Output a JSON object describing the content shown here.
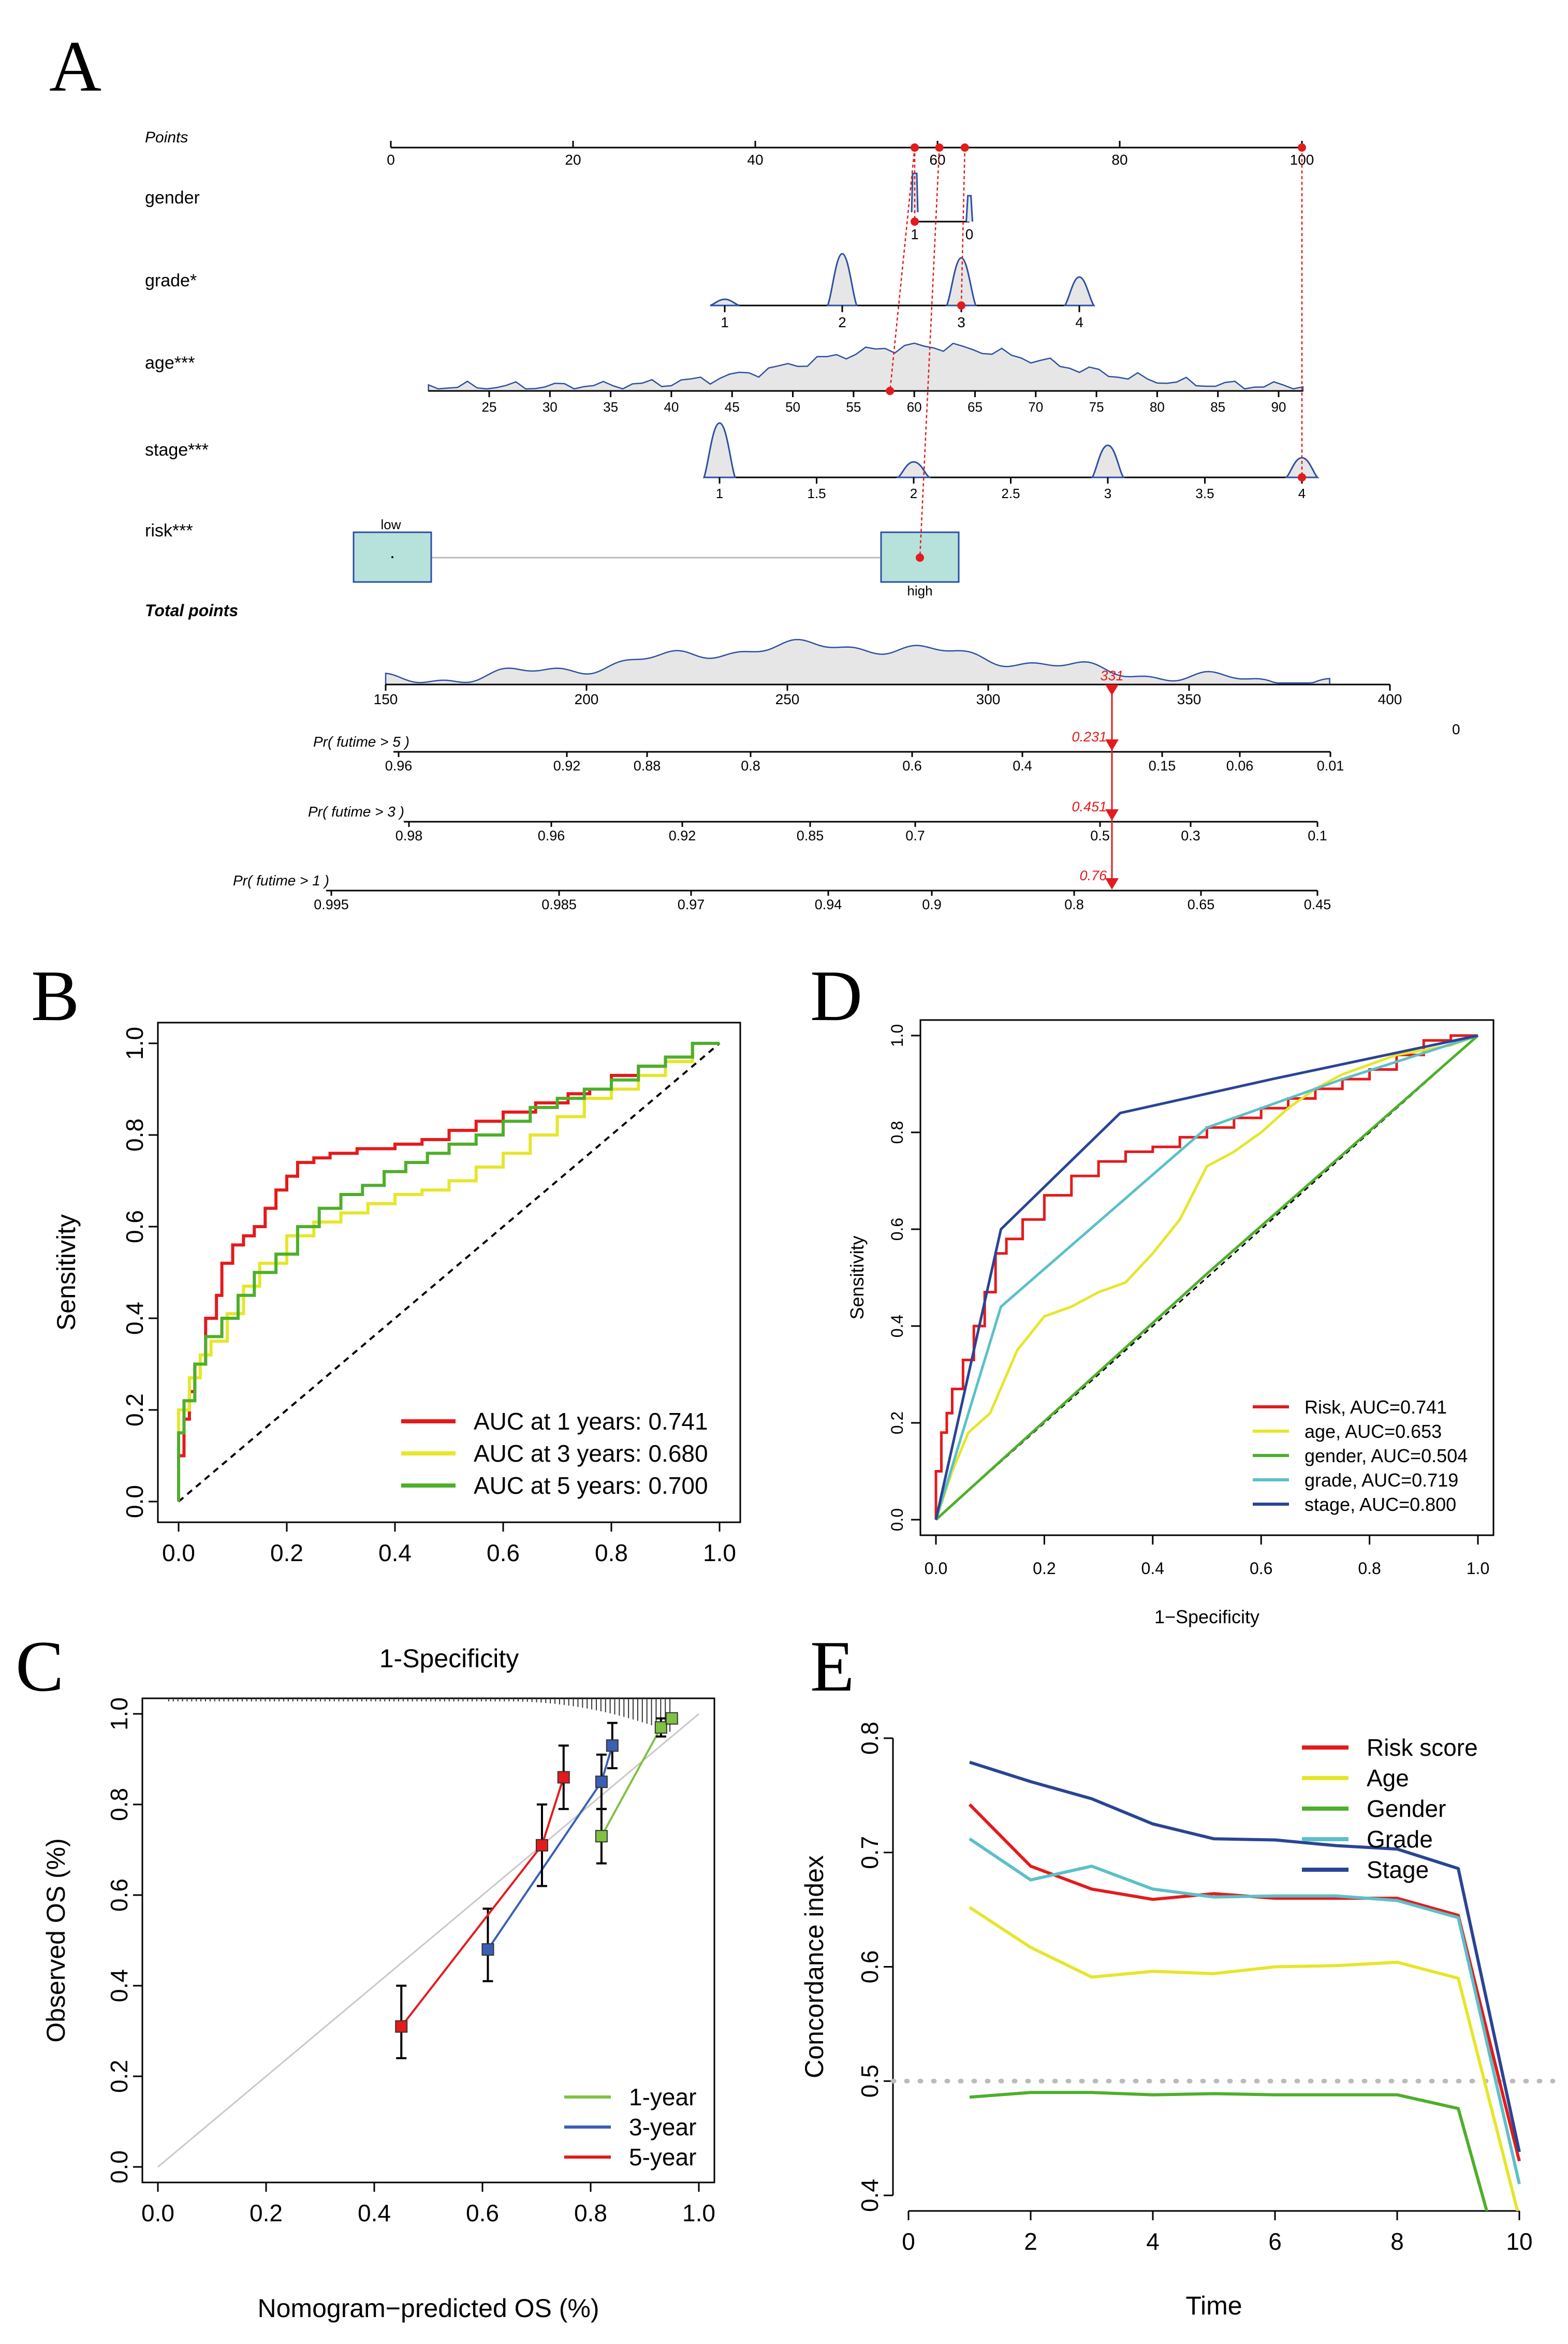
{
  "panels": {
    "A": {
      "letter": "A",
      "nomogram": {
        "points_label": "Points",
        "points_ticks": [
          "0",
          "20",
          "40",
          "60",
          "80",
          "100"
        ],
        "variables": [
          {
            "name": "gender",
            "ticks": [
              "1",
              "0"
            ]
          },
          {
            "name": "grade*",
            "ticks": [
              "1",
              "2",
              "3",
              "4"
            ]
          },
          {
            "name": "age***",
            "ticks": [
              "25",
              "30",
              "35",
              "40",
              "45",
              "50",
              "55",
              "60",
              "65",
              "70",
              "75",
              "80",
              "85",
              "90"
            ]
          },
          {
            "name": "stage***",
            "ticks": [
              "1",
              "1.5",
              "2",
              "2.5",
              "3",
              "3.5",
              "4"
            ]
          },
          {
            "name": "risk***",
            "ticks": [
              "low",
              "high"
            ]
          }
        ],
        "total_points_label": "Total points",
        "total_ticks": [
          "150",
          "200",
          "250",
          "300",
          "350",
          "400"
        ],
        "total_value": "331",
        "extra_zero": "0",
        "probabilities": [
          {
            "label": "Pr( futime > 5 )",
            "ticks": [
              "0.96",
              "0.92",
              "0.88",
              "0.8",
              "0.6",
              "0.4",
              "0.15",
              "0.06",
              "0.01"
            ],
            "value": "0.231"
          },
          {
            "label": "Pr( futime > 3 )",
            "ticks": [
              "0.98",
              "0.96",
              "0.92",
              "0.85",
              "0.7",
              "0.5",
              "0.3",
              "0.1"
            ],
            "value": "0.451"
          },
          {
            "label": "Pr( futime > 1 )",
            "ticks": [
              "0.995",
              "0.985",
              "0.97",
              "0.94",
              "0.9",
              "0.8",
              "0.65",
              "0.45"
            ],
            "value": "0.76"
          }
        ]
      }
    },
    "B": {
      "letter": "B"
    },
    "C": {
      "letter": "C"
    },
    "D": {
      "letter": "D"
    },
    "E": {
      "letter": "E"
    }
  },
  "colors": {
    "red": "#e41a1c",
    "yellow": "#e6e62a",
    "green": "#4daf2a",
    "cyan": "#5bc0c8",
    "navy": "#2a4494",
    "blue": "#3a5fb5",
    "grey": "#c0c0c0",
    "dot_red": "#e41a1c"
  },
  "chart_data": [
    {
      "panel": "B",
      "type": "line",
      "xlabel": "1-Specificity",
      "ylabel": "Sensitivity",
      "xlim": [
        0,
        1
      ],
      "ylim": [
        0,
        1
      ],
      "ticks": [
        0.0,
        0.2,
        0.4,
        0.6,
        0.8,
        1.0
      ],
      "tick_labels": [
        "0.0",
        "0.2",
        "0.4",
        "0.6",
        "0.8",
        "1.0"
      ],
      "legend": [
        {
          "label": "AUC at 1 years: 0.741",
          "color": "#e41a1c"
        },
        {
          "label": "AUC at 3 years: 0.680",
          "color": "#e6e62a"
        },
        {
          "label": "AUC at 5 years: 0.700",
          "color": "#4daf2a"
        }
      ],
      "series": [
        {
          "name": "AUC at 1 years: 0.741",
          "color": "#e41a1c",
          "x": [
            0,
            0.01,
            0.02,
            0.03,
            0.05,
            0.07,
            0.08,
            0.1,
            0.12,
            0.14,
            0.16,
            0.18,
            0.2,
            0.22,
            0.25,
            0.28,
            0.3,
            0.33,
            0.36,
            0.4,
            0.45,
            0.5,
            0.55,
            0.6,
            0.66,
            0.72,
            0.76,
            0.8,
            0.85,
            0.9,
            0.95,
            1.0
          ],
          "y": [
            0,
            0.1,
            0.18,
            0.24,
            0.3,
            0.4,
            0.45,
            0.52,
            0.56,
            0.58,
            0.6,
            0.64,
            0.68,
            0.71,
            0.74,
            0.75,
            0.76,
            0.76,
            0.77,
            0.77,
            0.78,
            0.79,
            0.81,
            0.83,
            0.85,
            0.87,
            0.89,
            0.9,
            0.93,
            0.95,
            0.97,
            1.0
          ]
        },
        {
          "name": "AUC at 3 years: 0.680",
          "color": "#e6e62a",
          "x": [
            0,
            0.02,
            0.04,
            0.06,
            0.09,
            0.12,
            0.15,
            0.2,
            0.25,
            0.3,
            0.35,
            0.4,
            0.45,
            0.5,
            0.55,
            0.6,
            0.65,
            0.7,
            0.75,
            0.8,
            0.85,
            0.9,
            0.95,
            1.0
          ],
          "y": [
            0,
            0.2,
            0.27,
            0.32,
            0.35,
            0.41,
            0.47,
            0.52,
            0.58,
            0.61,
            0.63,
            0.65,
            0.67,
            0.68,
            0.7,
            0.73,
            0.76,
            0.8,
            0.84,
            0.88,
            0.9,
            0.93,
            0.96,
            1.0
          ]
        },
        {
          "name": "AUC at 5 years: 0.700",
          "color": "#4daf2a",
          "x": [
            0,
            0.01,
            0.03,
            0.05,
            0.08,
            0.11,
            0.14,
            0.18,
            0.22,
            0.26,
            0.3,
            0.34,
            0.38,
            0.42,
            0.46,
            0.5,
            0.55,
            0.6,
            0.65,
            0.7,
            0.75,
            0.8,
            0.85,
            0.9,
            0.95,
            1.0
          ],
          "y": [
            0,
            0.15,
            0.22,
            0.3,
            0.36,
            0.4,
            0.45,
            0.5,
            0.54,
            0.6,
            0.64,
            0.67,
            0.69,
            0.72,
            0.74,
            0.76,
            0.78,
            0.8,
            0.83,
            0.86,
            0.88,
            0.9,
            0.92,
            0.95,
            0.97,
            1.0
          ]
        }
      ]
    },
    {
      "panel": "C",
      "type": "line",
      "xlabel": "Nomogram−predicted OS (%)",
      "ylabel": "Observed OS (%)",
      "xlim": [
        0,
        1
      ],
      "ylim": [
        0,
        1
      ],
      "ticks": [
        0.0,
        0.2,
        0.4,
        0.6,
        0.8,
        1.0
      ],
      "tick_labels": [
        "0.0",
        "0.2",
        "0.4",
        "0.6",
        "0.8",
        "1.0"
      ],
      "legend": [
        {
          "label": "1-year",
          "color": "#7fc241"
        },
        {
          "label": "3-year",
          "color": "#3a5fb5"
        },
        {
          "label": "5-year",
          "color": "#e41a1c"
        }
      ],
      "series": [
        {
          "name": "1-year",
          "color": "#7fc241",
          "x": [
            0.82,
            0.93,
            0.95
          ],
          "y": [
            0.73,
            0.97,
            0.99
          ],
          "err_low": [
            0.67,
            0.95,
            0.98
          ],
          "err_high": [
            0.79,
            0.99,
            1.0
          ]
        },
        {
          "name": "3-year",
          "color": "#3a5fb5",
          "x": [
            0.61,
            0.82,
            0.84
          ],
          "y": [
            0.48,
            0.85,
            0.93
          ],
          "err_low": [
            0.41,
            0.79,
            0.88
          ],
          "err_high": [
            0.57,
            0.91,
            0.98
          ]
        },
        {
          "name": "5-year",
          "color": "#e41a1c",
          "x": [
            0.45,
            0.71,
            0.75
          ],
          "y": [
            0.31,
            0.71,
            0.86
          ],
          "err_low": [
            0.24,
            0.62,
            0.79
          ],
          "err_high": [
            0.4,
            0.8,
            0.93
          ]
        }
      ]
    },
    {
      "panel": "D",
      "type": "line",
      "xlabel": "1−Specificity",
      "ylabel": "Sensitivity",
      "xlim": [
        0,
        1
      ],
      "ylim": [
        0,
        1
      ],
      "ticks": [
        0.0,
        0.2,
        0.4,
        0.6,
        0.8,
        1.0
      ],
      "tick_labels": [
        "0.0",
        "0.2",
        "0.4",
        "0.6",
        "0.8",
        "1.0"
      ],
      "legend": [
        {
          "label": "Risk, AUC=0.741",
          "color": "#e41a1c"
        },
        {
          "label": "age, AUC=0.653",
          "color": "#e6e62a"
        },
        {
          "label": "gender, AUC=0.504",
          "color": "#4daf2a"
        },
        {
          "label": "grade, AUC=0.719",
          "color": "#5bc0c8"
        },
        {
          "label": "stage, AUC=0.800",
          "color": "#2a4494"
        }
      ],
      "series": [
        {
          "name": "Risk, AUC=0.741",
          "color": "#e41a1c",
          "x": [
            0,
            0.01,
            0.02,
            0.03,
            0.05,
            0.07,
            0.09,
            0.11,
            0.13,
            0.16,
            0.2,
            0.25,
            0.3,
            0.35,
            0.4,
            0.45,
            0.5,
            0.55,
            0.6,
            0.65,
            0.7,
            0.75,
            0.8,
            0.85,
            0.9,
            0.95,
            1.0
          ],
          "y": [
            0,
            0.1,
            0.18,
            0.22,
            0.27,
            0.33,
            0.4,
            0.47,
            0.55,
            0.58,
            0.62,
            0.67,
            0.71,
            0.74,
            0.76,
            0.77,
            0.79,
            0.81,
            0.83,
            0.85,
            0.87,
            0.89,
            0.91,
            0.93,
            0.96,
            0.99,
            1.0
          ]
        },
        {
          "name": "age, AUC=0.653",
          "color": "#e6e62a",
          "x": [
            0,
            0.03,
            0.06,
            0.1,
            0.15,
            0.2,
            0.25,
            0.3,
            0.35,
            0.4,
            0.45,
            0.5,
            0.55,
            0.6,
            0.65,
            0.7,
            0.75,
            0.8,
            0.85,
            0.9,
            0.95,
            1.0
          ],
          "y": [
            0,
            0.1,
            0.18,
            0.22,
            0.35,
            0.42,
            0.44,
            0.47,
            0.49,
            0.55,
            0.62,
            0.73,
            0.76,
            0.8,
            0.85,
            0.89,
            0.92,
            0.94,
            0.96,
            0.97,
            0.98,
            1.0
          ]
        },
        {
          "name": "gender, AUC=0.504",
          "color": "#4daf2a",
          "x": [
            0,
            0.5,
            1.0
          ],
          "y": [
            0,
            0.508,
            1.0
          ]
        },
        {
          "name": "grade, AUC=0.719",
          "color": "#5bc0c8",
          "x": [
            0,
            0.12,
            0.5,
            0.75,
            1.0
          ],
          "y": [
            0,
            0.44,
            0.81,
            0.91,
            1.0
          ]
        },
        {
          "name": "stage, AUC=0.800",
          "color": "#2a4494",
          "x": [
            0,
            0.12,
            0.34,
            0.62,
            1.0
          ],
          "y": [
            0,
            0.6,
            0.84,
            0.91,
            1.0
          ]
        }
      ]
    },
    {
      "panel": "E",
      "type": "line",
      "xlabel": "Time",
      "ylabel": "Concordance index",
      "xlim": [
        0,
        10
      ],
      "ylim": [
        0.4,
        0.8
      ],
      "xticks": [
        0,
        2,
        4,
        6,
        8,
        10
      ],
      "xtick_labels": [
        "0",
        "2",
        "4",
        "6",
        "8",
        "10"
      ],
      "yticks": [
        0.4,
        0.5,
        0.6,
        0.7,
        0.8
      ],
      "ytick_labels": [
        "0.4",
        "0.5",
        "0.6",
        "0.7",
        "0.8"
      ],
      "reference_line": 0.5,
      "legend": [
        {
          "label": "Risk score",
          "color": "#e41a1c"
        },
        {
          "label": "Age",
          "color": "#e6e62a"
        },
        {
          "label": "Gender",
          "color": "#4daf2a"
        },
        {
          "label": "Grade",
          "color": "#5bc0c8"
        },
        {
          "label": "Stage",
          "color": "#2a4494"
        }
      ],
      "series": [
        {
          "name": "Risk score",
          "color": "#e41a1c",
          "x": [
            1,
            2,
            3,
            4,
            5,
            6,
            7,
            8,
            9,
            10
          ],
          "y": [
            0.742,
            0.688,
            0.668,
            0.659,
            0.664,
            0.66,
            0.66,
            0.66,
            0.645,
            0.43
          ]
        },
        {
          "name": "Age",
          "color": "#e6e62a",
          "x": [
            1,
            2,
            3,
            4,
            5,
            6,
            7,
            8,
            9,
            10
          ],
          "y": [
            0.652,
            0.617,
            0.591,
            0.596,
            0.594,
            0.6,
            0.601,
            0.604,
            0.59,
            0.38
          ]
        },
        {
          "name": "Gender",
          "color": "#4daf2a",
          "x": [
            1,
            2,
            3,
            4,
            5,
            6,
            7,
            8,
            9,
            9.5
          ],
          "y": [
            0.486,
            0.49,
            0.49,
            0.488,
            0.489,
            0.488,
            0.488,
            0.488,
            0.476,
            0.38
          ]
        },
        {
          "name": "Grade",
          "color": "#5bc0c8",
          "x": [
            1,
            2,
            3,
            4,
            5,
            6,
            7,
            8,
            9,
            10
          ],
          "y": [
            0.712,
            0.676,
            0.688,
            0.668,
            0.661,
            0.662,
            0.662,
            0.658,
            0.643,
            0.41
          ]
        },
        {
          "name": "Stage",
          "color": "#2a4494",
          "x": [
            1,
            2,
            3,
            4,
            5,
            6,
            7,
            8,
            9,
            10
          ],
          "y": [
            0.779,
            0.762,
            0.747,
            0.725,
            0.712,
            0.711,
            0.706,
            0.703,
            0.686,
            0.438
          ]
        }
      ]
    }
  ]
}
